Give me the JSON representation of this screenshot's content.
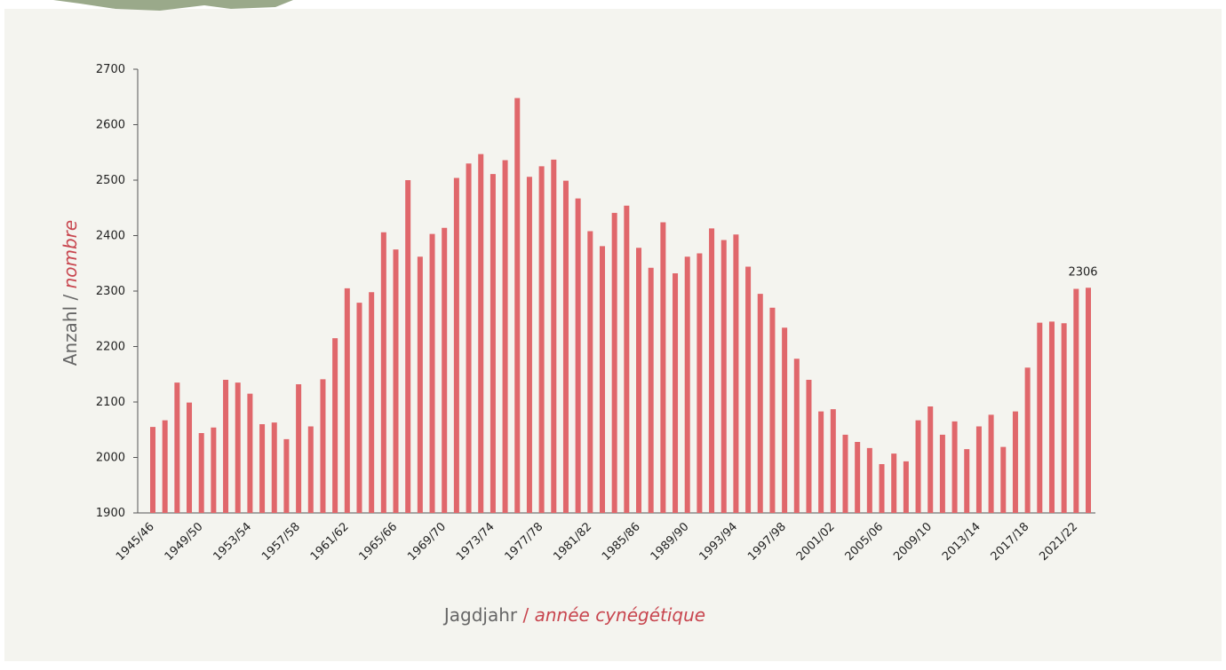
{
  "chart_data": {
    "type": "bar",
    "ylabel": [
      "Anzahl",
      "/",
      "nombre"
    ],
    "xlabel": [
      "Jagdjahr",
      "/",
      "année cynégétique"
    ],
    "color": "#e0676b",
    "categories": [
      "1945/46",
      null,
      null,
      null,
      "1949/50",
      null,
      null,
      null,
      "1953/54",
      null,
      null,
      null,
      "1957/58",
      null,
      null,
      null,
      "1961/62",
      null,
      null,
      null,
      "1965/66",
      null,
      null,
      null,
      "1969/70",
      null,
      null,
      null,
      "1973/74",
      null,
      null,
      null,
      "1977/78",
      null,
      null,
      null,
      "1981/82",
      null,
      null,
      null,
      "1985/86",
      null,
      null,
      null,
      "1989/90",
      null,
      null,
      null,
      "1993/94",
      null,
      null,
      null,
      "1997/98",
      null,
      null,
      null,
      "2001/02",
      null,
      null,
      null,
      "2005/06",
      null,
      null,
      null,
      "2009/10",
      null,
      null,
      null,
      "2013/14",
      null,
      null,
      null,
      "2017/18",
      null,
      null,
      null,
      "2021/22",
      null
    ],
    "values": [
      2055,
      2067,
      2135,
      2099,
      2044,
      2054,
      2140,
      2135,
      2115,
      2060,
      2063,
      2033,
      2132,
      2056,
      2141,
      2215,
      2305,
      2279,
      2298,
      2406,
      2375,
      2500,
      2362,
      2403,
      2414,
      2504,
      2530,
      2547,
      2511,
      2536,
      2648,
      2506,
      2525,
      2537,
      2499,
      2467,
      2408,
      2381,
      2441,
      2454,
      2378,
      2342,
      2424,
      2332,
      2362,
      2368,
      2413,
      2392,
      2402,
      2344,
      2295,
      2270,
      2234,
      2178,
      2140,
      2083,
      2087,
      2041,
      2028,
      2017,
      1988,
      2007,
      1993,
      2067,
      2092,
      2041,
      2065,
      2015,
      2056,
      2077,
      2019,
      2083,
      2162,
      2243,
      2245,
      2242,
      2304,
      2306
    ],
    "ylim": [
      1900,
      2700
    ],
    "yticks": [
      1900,
      2000,
      2100,
      2200,
      2300,
      2400,
      2500,
      2600,
      2700
    ]
  }
}
